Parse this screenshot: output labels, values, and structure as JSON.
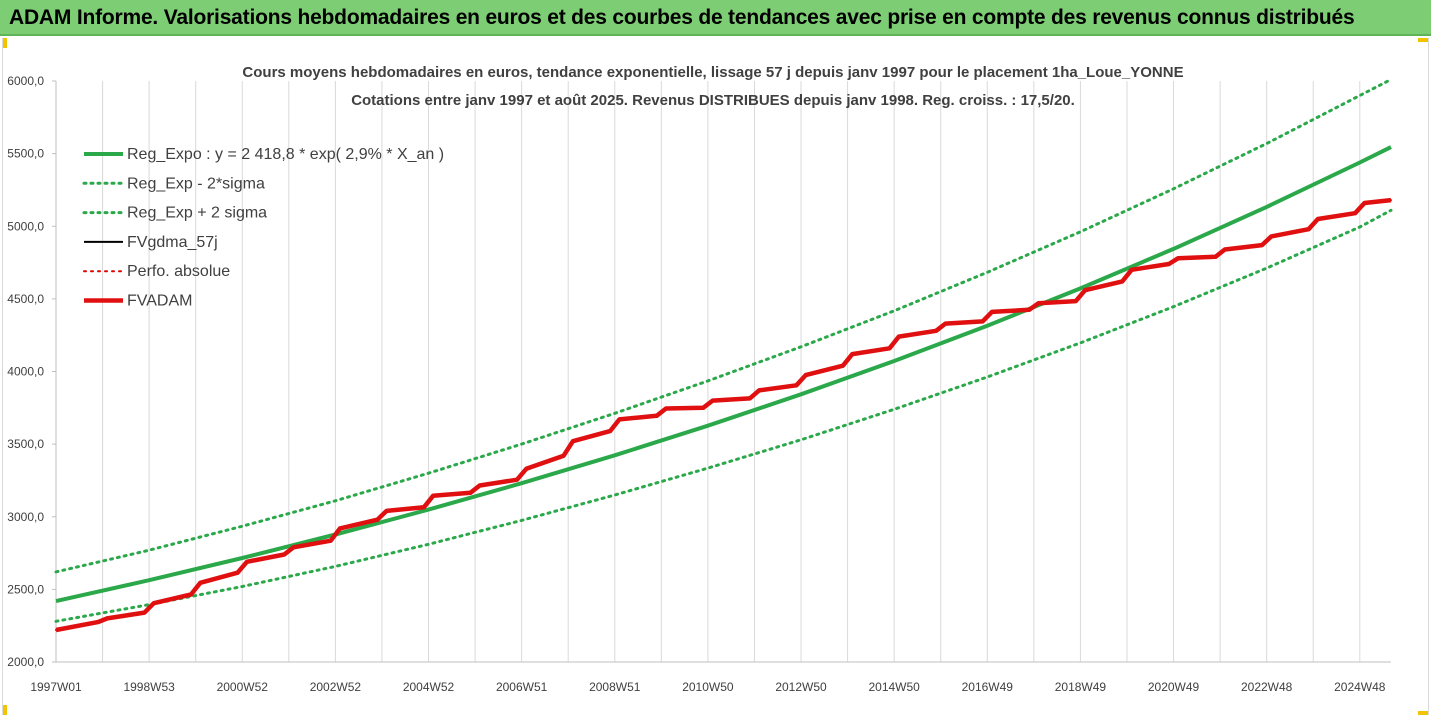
{
  "banner": {
    "title": "ADAM Informe. Valorisations hebdomadaires en euros et des courbes de tendances avec prise en compte des revenus connus distribués"
  },
  "chart_data": {
    "type": "line",
    "title": "Cours moyens hebdomadaires en euros, tendance exponentielle, lissage 57 j depuis janv 1997 pour le placement 1ha_Loue_YONNE",
    "subtitle": "Cotations entre janv 1997 et août 2025. Revenus DISTRIBUES depuis janv 1998. Reg. croiss. : 17,5/20.",
    "ylim": [
      2000,
      6000
    ],
    "yticks": [
      "2000,0",
      "2500,0",
      "3000,0",
      "3500,0",
      "4000,0",
      "4500,0",
      "5000,0",
      "5500,0",
      "6000,0"
    ],
    "xlim": [
      1997.0,
      2025.67
    ],
    "xticks": [
      {
        "label": "1997W01",
        "year": 1997.0
      },
      {
        "label": "1998W53",
        "year": 1999.0
      },
      {
        "label": "2000W52",
        "year": 2001.0
      },
      {
        "label": "2002W52",
        "year": 2003.0
      },
      {
        "label": "2004W52",
        "year": 2005.0
      },
      {
        "label": "2006W51",
        "year": 2007.0
      },
      {
        "label": "2008W51",
        "year": 2009.0
      },
      {
        "label": "2010W50",
        "year": 2011.0
      },
      {
        "label": "2012W50",
        "year": 2013.0
      },
      {
        "label": "2014W50",
        "year": 2015.0
      },
      {
        "label": "2016W49",
        "year": 2017.0
      },
      {
        "label": "2018W49",
        "year": 2019.0
      },
      {
        "label": "2020W49",
        "year": 2021.0
      },
      {
        "label": "2022W48",
        "year": 2023.0
      },
      {
        "label": "2024W48",
        "year": 2025.0
      }
    ],
    "grid": "vertical",
    "legend_position": "top-left",
    "series": [
      {
        "name": "Reg_Expo : y = 2 418,8 * exp( 2,9% *  X_an )",
        "color": "#2aa84a",
        "style": "solid-thick",
        "x": [
          1997,
          1999,
          2001,
          2003,
          2005,
          2007,
          2009,
          2011,
          2013,
          2015,
          2017,
          2019,
          2021,
          2023,
          2025,
          2025.67
        ],
        "y": [
          2419,
          2563,
          2716,
          2878,
          3049,
          3231,
          3423,
          3627,
          3843,
          4072,
          4315,
          4572,
          4844,
          5133,
          5439,
          5545
        ]
      },
      {
        "name": "Reg_Exp - 2*sigma",
        "color": "#2aa84a",
        "style": "dotted",
        "x": [
          1997,
          1999,
          2001,
          2003,
          2005,
          2007,
          2009,
          2011,
          2013,
          2015,
          2017,
          2019,
          2021,
          2023,
          2025,
          2025.67
        ],
        "y": [
          2280,
          2395,
          2520,
          2658,
          2810,
          2975,
          3150,
          3335,
          3530,
          3740,
          3962,
          4197,
          4446,
          4712,
          4995,
          5110
        ]
      },
      {
        "name": "Reg_Exp + 2 sigma",
        "color": "#2aa84a",
        "style": "dotted",
        "x": [
          1997,
          1999,
          2001,
          2003,
          2005,
          2007,
          2009,
          2011,
          2013,
          2015,
          2017,
          2019,
          2021,
          2023,
          2025,
          2025.67
        ],
        "y": [
          2620,
          2770,
          2935,
          3110,
          3300,
          3500,
          3712,
          3935,
          4170,
          4418,
          4683,
          4962,
          5258,
          5570,
          5900,
          6010
        ]
      },
      {
        "name": "FVgdma_57j",
        "color": "#000000",
        "style": "solid",
        "x": [
          1997,
          1997.9,
          1998.1,
          1998.9,
          1999.1,
          1999.9,
          2000.1,
          2000.9,
          2001.1,
          2001.9,
          2002.1,
          2002.9,
          2003.1,
          2003.9,
          2004.1,
          2004.9,
          2005.1,
          2005.9,
          2006.1,
          2006.9,
          2007.1,
          2007.9,
          2008.1,
          2008.9,
          2009.1,
          2009.9,
          2010.1,
          2010.9,
          2011.1,
          2011.9,
          2012.1,
          2012.9,
          2013.1,
          2013.9,
          2014.1,
          2014.9,
          2015.1,
          2015.9,
          2016.1,
          2016.9,
          2017.1,
          2017.9,
          2018.1,
          2018.9,
          2019.1,
          2019.9,
          2020.1,
          2020.9,
          2021.1,
          2021.9,
          2022.1,
          2022.9,
          2023.1,
          2023.9,
          2024.1,
          2024.9,
          2025.1,
          2025.67
        ],
        "y": [
          2220,
          2275,
          2300,
          2340,
          2405,
          2465,
          2545,
          2615,
          2690,
          2740,
          2790,
          2835,
          2920,
          2980,
          3040,
          3065,
          3145,
          3165,
          3215,
          3255,
          3330,
          3420,
          3520,
          3590,
          3670,
          3695,
          3745,
          3750,
          3800,
          3815,
          3870,
          3905,
          3975,
          4040,
          4120,
          4160,
          4240,
          4280,
          4330,
          4345,
          4410,
          4425,
          4470,
          4485,
          4560,
          4620,
          4700,
          4740,
          4780,
          4790,
          4840,
          4870,
          4930,
          4980,
          5050,
          5090,
          5160,
          5180
        ]
      },
      {
        "name": "Perfo. absolue",
        "color": "#e00000",
        "style": "dotted",
        "x": [
          1997,
          1997.9,
          1998.1,
          1998.9,
          1999.1,
          1999.9,
          2000.1,
          2000.9,
          2001.1,
          2001.9,
          2002.1,
          2002.9,
          2003.1,
          2003.9,
          2004.1,
          2004.9,
          2005.1,
          2005.9,
          2006.1,
          2006.9,
          2007.1,
          2007.9,
          2008.1,
          2008.9,
          2009.1,
          2009.9,
          2010.1,
          2010.9,
          2011.1,
          2011.9,
          2012.1,
          2012.9,
          2013.1,
          2013.9,
          2014.1,
          2014.9,
          2015.1,
          2015.9,
          2016.1,
          2016.9,
          2017.1,
          2017.9,
          2018.1,
          2018.9,
          2019.1,
          2019.9,
          2020.1,
          2020.9,
          2021.1,
          2021.9,
          2022.1,
          2022.9,
          2023.1,
          2023.9,
          2024.1,
          2024.9,
          2025.1,
          2025.67
        ],
        "y": [
          2220,
          2275,
          2300,
          2340,
          2405,
          2465,
          2545,
          2615,
          2690,
          2740,
          2790,
          2835,
          2920,
          2980,
          3040,
          3065,
          3145,
          3165,
          3215,
          3255,
          3330,
          3420,
          3520,
          3590,
          3670,
          3695,
          3745,
          3750,
          3800,
          3815,
          3870,
          3905,
          3975,
          4040,
          4120,
          4160,
          4240,
          4280,
          4330,
          4345,
          4410,
          4425,
          4470,
          4485,
          4560,
          4620,
          4700,
          4740,
          4780,
          4790,
          4840,
          4870,
          4930,
          4980,
          5050,
          5090,
          5160,
          5180
        ]
      },
      {
        "name": "FVADAM",
        "color": "#e01010",
        "style": "solid-thick",
        "x": [
          1997,
          1997.9,
          1998.1,
          1998.9,
          1999.1,
          1999.9,
          2000.1,
          2000.9,
          2001.1,
          2001.9,
          2002.1,
          2002.9,
          2003.1,
          2003.9,
          2004.1,
          2004.9,
          2005.1,
          2005.9,
          2006.1,
          2006.9,
          2007.1,
          2007.9,
          2008.1,
          2008.9,
          2009.1,
          2009.9,
          2010.1,
          2010.9,
          2011.1,
          2011.9,
          2012.1,
          2012.9,
          2013.1,
          2013.9,
          2014.1,
          2014.9,
          2015.1,
          2015.9,
          2016.1,
          2016.9,
          2017.1,
          2017.9,
          2018.1,
          2018.9,
          2019.1,
          2019.9,
          2020.1,
          2020.9,
          2021.1,
          2021.9,
          2022.1,
          2022.9,
          2023.1,
          2023.9,
          2024.1,
          2024.9,
          2025.1,
          2025.67
        ],
        "y": [
          2220,
          2275,
          2300,
          2340,
          2405,
          2465,
          2545,
          2615,
          2690,
          2740,
          2790,
          2835,
          2920,
          2980,
          3040,
          3065,
          3145,
          3165,
          3215,
          3255,
          3330,
          3420,
          3520,
          3590,
          3670,
          3695,
          3745,
          3750,
          3800,
          3815,
          3870,
          3905,
          3975,
          4040,
          4120,
          4160,
          4240,
          4280,
          4330,
          4345,
          4410,
          4425,
          4470,
          4485,
          4560,
          4620,
          4700,
          4740,
          4780,
          4790,
          4840,
          4870,
          4930,
          4980,
          5050,
          5090,
          5160,
          5180
        ]
      }
    ]
  }
}
